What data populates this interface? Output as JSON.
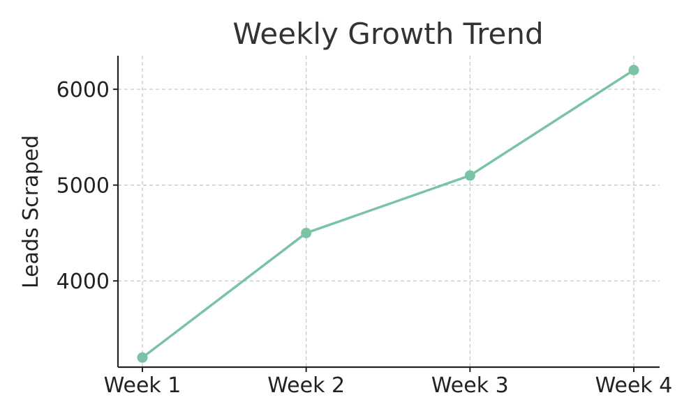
{
  "chart_data": {
    "type": "line",
    "title": "Weekly Growth Trend",
    "xlabel": "",
    "ylabel": "Leads Scraped",
    "categories": [
      "Week 1",
      "Week 2",
      "Week 3",
      "Week 4"
    ],
    "series": [
      {
        "values": [
          3200,
          4500,
          5100,
          6200
        ],
        "color": "#7bc3a5",
        "marker": "circle"
      }
    ],
    "ylim": [
      3100,
      6350
    ],
    "yticks": [
      4000,
      5000,
      6000
    ],
    "grid": true,
    "legend": "none"
  }
}
